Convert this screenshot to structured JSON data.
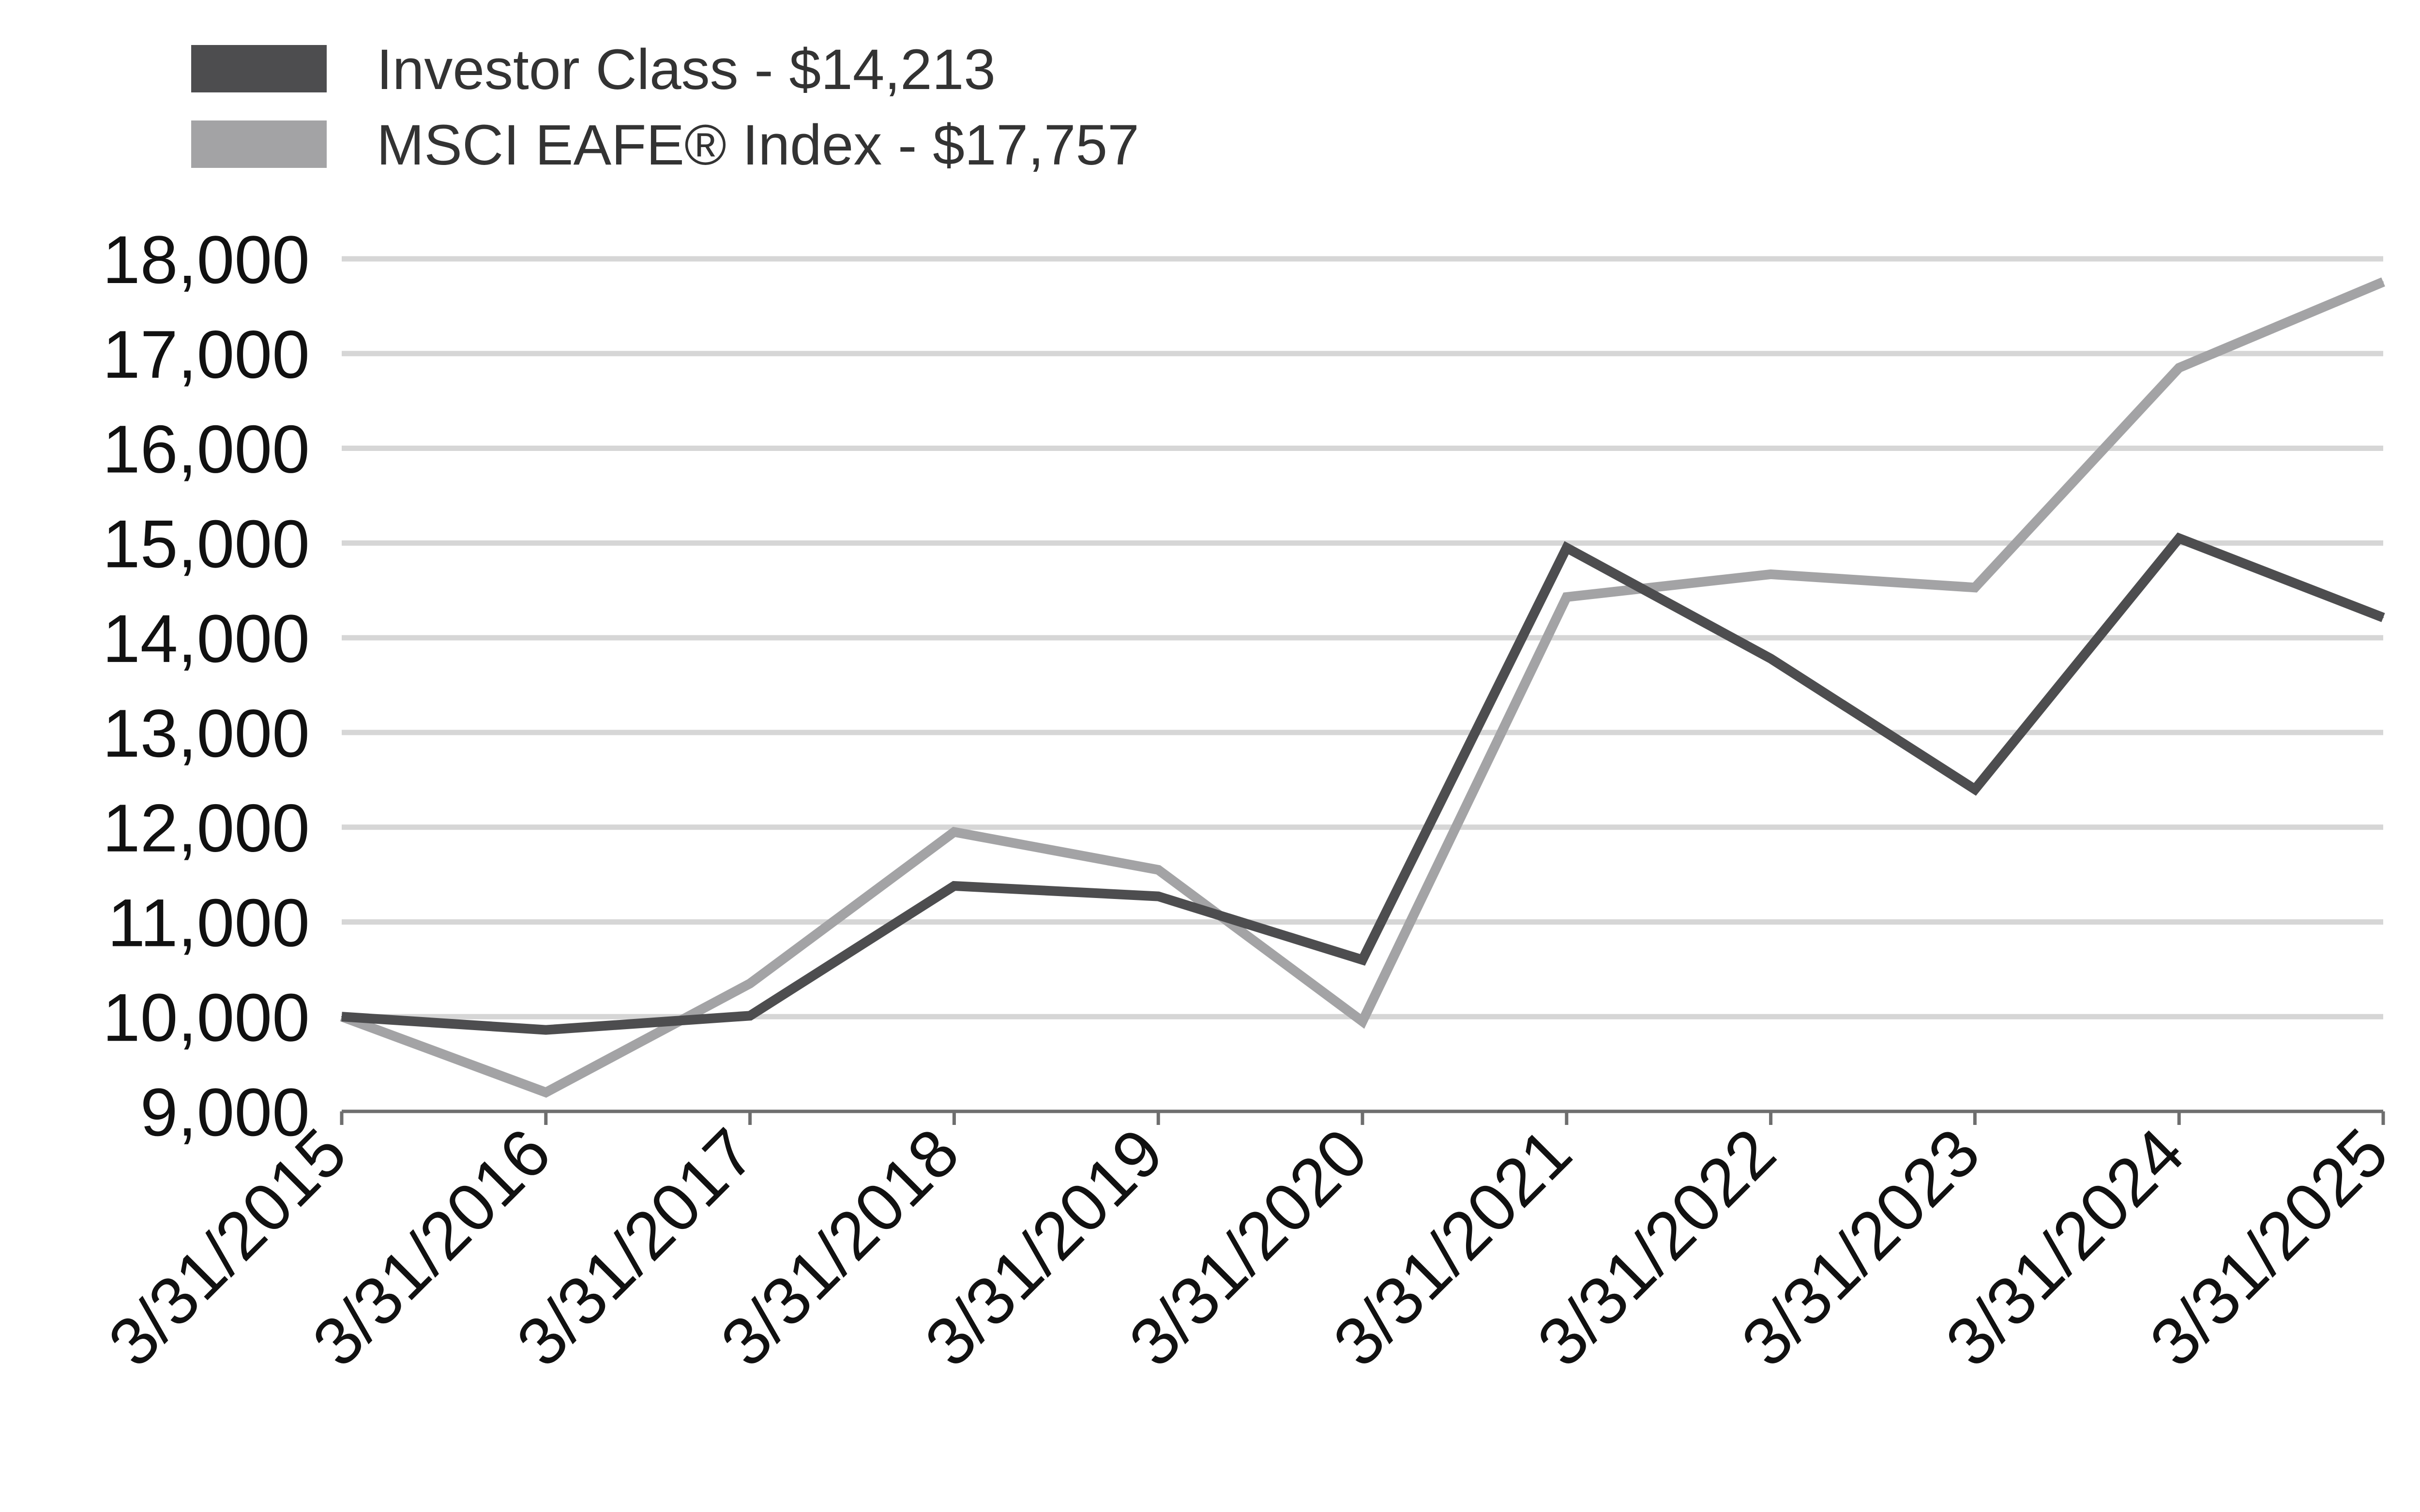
{
  "chart_data": {
    "type": "line",
    "title": "",
    "xlabel": "",
    "ylabel": "",
    "categories": [
      "3/31/2015",
      "3/31/2016",
      "3/31/2017",
      "3/31/2018",
      "3/31/2019",
      "3/31/2020",
      "3/31/2021",
      "3/31/2022",
      "3/31/2023",
      "3/31/2024",
      "3/31/2025"
    ],
    "yticks": [
      "9,000",
      "10,000",
      "11,000",
      "12,000",
      "13,000",
      "14,000",
      "15,000",
      "16,000",
      "17,000",
      "18,000"
    ],
    "ylim": [
      9000,
      18000
    ],
    "grid": true,
    "legend_position": "top-left",
    "series": [
      {
        "name": "Investor Class - $14,213",
        "color": "#4d4d4f",
        "values": [
          10000,
          9860,
          10010,
          11380,
          11270,
          10600,
          14950,
          13780,
          12400,
          15050,
          14213
        ]
      },
      {
        "name": "MSCI EAFE® Index - $17,757",
        "color": "#a3a3a5",
        "values": [
          10000,
          9200,
          10350,
          11950,
          11550,
          9950,
          14430,
          14670,
          14530,
          16850,
          17757
        ]
      }
    ]
  }
}
